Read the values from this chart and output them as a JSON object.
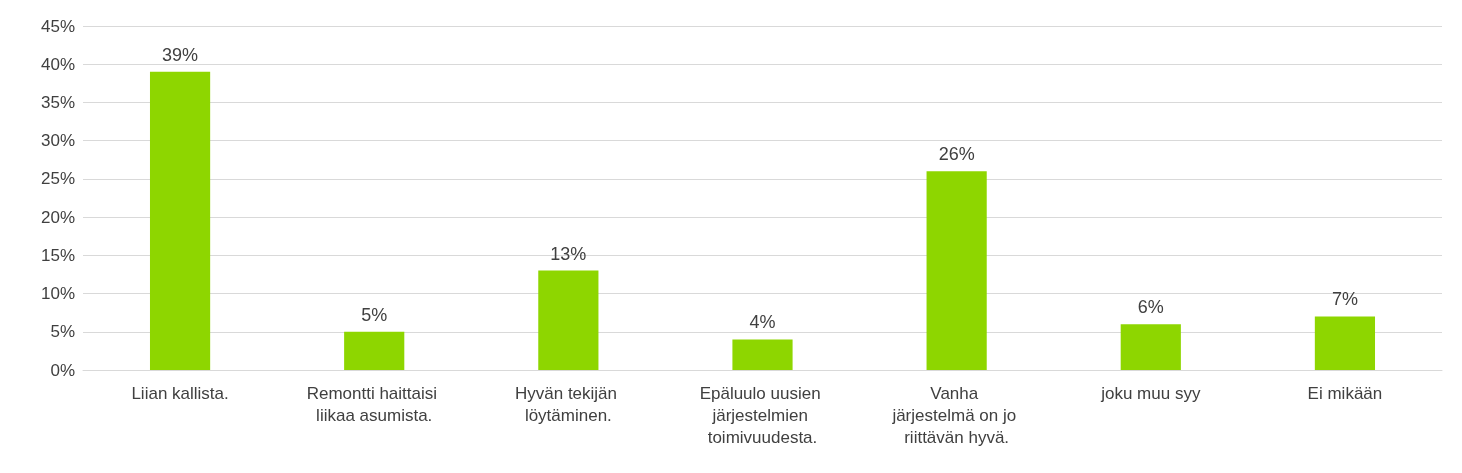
{
  "chart_data": {
    "type": "bar",
    "categories": [
      "Liian kallista.",
      "Remontti haittaisi liikaa asumista.",
      "Hyvän tekijän löytäminen.",
      "Epäluulo uusien järjestelmien toimivuudesta.",
      "Vanha järjestelmä on jo riittävän hyvä.",
      "joku muu syy",
      "Ei mikään"
    ],
    "values": [
      39,
      5,
      13,
      4,
      26,
      6,
      7
    ],
    "value_labels": [
      "39%",
      "5%",
      "13%",
      "4%",
      "26%",
      "6%",
      "7%"
    ],
    "color": "#8ed600",
    "ylim": [
      0,
      45
    ],
    "yticks": [
      {
        "value": 0,
        "label": "0%"
      },
      {
        "value": 5,
        "label": "5%"
      },
      {
        "value": 10,
        "label": "10%"
      },
      {
        "value": 15,
        "label": "15%"
      },
      {
        "value": 20,
        "label": "20%"
      },
      {
        "value": 25,
        "label": "25%"
      },
      {
        "value": 30,
        "label": "30%"
      },
      {
        "value": 35,
        "label": "35%"
      },
      {
        "value": 40,
        "label": "40%"
      },
      {
        "value": 45,
        "label": "45%"
      }
    ],
    "grid": "y"
  }
}
